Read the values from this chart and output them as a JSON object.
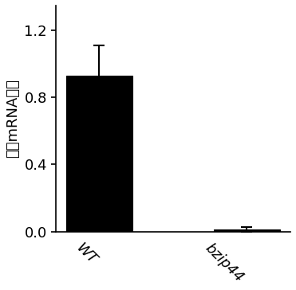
{
  "categories": [
    "WT",
    "bzip44"
  ],
  "values": [
    0.93,
    0.012
  ],
  "errors": [
    0.18,
    0.015
  ],
  "bar_colors": [
    "#000000",
    "#000000"
  ],
  "ylim": [
    0,
    1.35
  ],
  "yticks": [
    0,
    0.4,
    0.8,
    1.2
  ],
  "ylabel": "相关mRNA水平",
  "ylabel_fontsize": 13,
  "tick_fontsize": 13,
  "xlabel_fontsize": 13,
  "bar_width": 0.45,
  "capsize": 5,
  "elinewidth": 1.5,
  "ecapthick": 1.5,
  "label_rotation": -45
}
